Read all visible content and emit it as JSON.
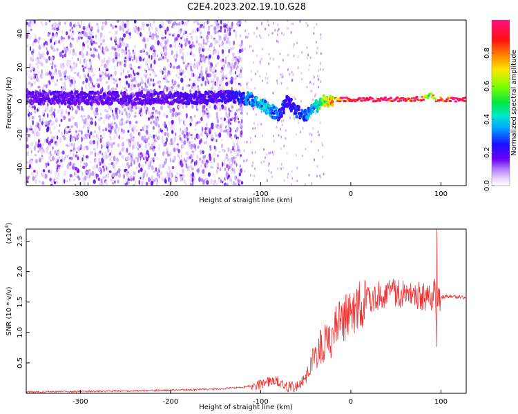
{
  "figure": {
    "title": "C2E4.2023.202.19.10.G28"
  },
  "chart_data": [
    {
      "type": "heatmap",
      "xlabel": "Height of straight line (km)",
      "ylabel": "Frequency (Hz)",
      "xlim": [
        -360,
        128
      ],
      "ylim": [
        -50,
        48
      ],
      "xticks": [
        -300,
        -200,
        -100,
        0,
        100
      ],
      "yticks": [
        -40,
        -20,
        0,
        20,
        40
      ],
      "colorbar": {
        "label": "Normalized spectral amplitude",
        "range": [
          0,
          1
        ],
        "ticks": [
          0.0,
          0.2,
          0.4,
          0.6,
          0.8
        ]
      },
      "ridge": {
        "x": [
          -360,
          -300,
          -250,
          -200,
          -150,
          -130,
          -110,
          -100,
          -90,
          -80,
          -70,
          -60,
          -50,
          -40,
          -30,
          -20,
          0,
          50,
          80,
          88,
          95,
          100,
          128
        ],
        "frequency": [
          2,
          2,
          1.5,
          2,
          2,
          3,
          1,
          -2,
          -5,
          -8,
          0,
          -6,
          -9,
          -4,
          0,
          1,
          1,
          1,
          1.5,
          4,
          1,
          1,
          1
        ],
        "amplitude": [
          0.15,
          0.16,
          0.15,
          0.17,
          0.18,
          0.2,
          0.3,
          0.35,
          0.35,
          0.25,
          0.2,
          0.25,
          0.28,
          0.35,
          0.55,
          0.75,
          0.95,
          0.95,
          0.85,
          0.5,
          0.8,
          0.9,
          0.95
        ]
      }
    },
    {
      "type": "line",
      "xlabel": "Height of straight line (km)",
      "ylabel": "SNR (10 * v/v)",
      "yscale_label": "(x10",
      "yscale_exp": "4",
      "yscale_close": ")",
      "xlim": [
        -360,
        128
      ],
      "ylim": [
        0,
        2.7
      ],
      "xticks": [
        -300,
        -200,
        -100,
        0,
        100
      ],
      "yticks": [
        0.5,
        1.0,
        1.5,
        2.0,
        2.5
      ],
      "series": [
        {
          "color": "#ee3333",
          "x": [
            -360,
            -300,
            -250,
            -200,
            -150,
            -120,
            -100,
            -90,
            -80,
            -70,
            -60,
            -50,
            -45,
            -40,
            -35,
            -30,
            -25,
            -20,
            -15,
            -10,
            -5,
            0,
            10,
            20,
            30,
            40,
            50,
            60,
            70,
            75,
            80,
            85,
            90,
            93,
            95,
            97,
            100,
            110,
            120,
            128
          ],
          "y": [
            0.02,
            0.03,
            0.04,
            0.05,
            0.07,
            0.1,
            0.15,
            0.2,
            0.2,
            0.1,
            0.12,
            0.25,
            0.45,
            0.6,
            0.75,
            0.85,
            0.9,
            1.0,
            1.1,
            1.2,
            1.25,
            1.35,
            1.45,
            1.55,
            1.6,
            1.62,
            1.64,
            1.65,
            1.66,
            1.6,
            1.55,
            1.65,
            1.5,
            1.8,
            0.8,
            1.6,
            1.58,
            1.6,
            1.58,
            1.57
          ]
        }
      ]
    }
  ]
}
